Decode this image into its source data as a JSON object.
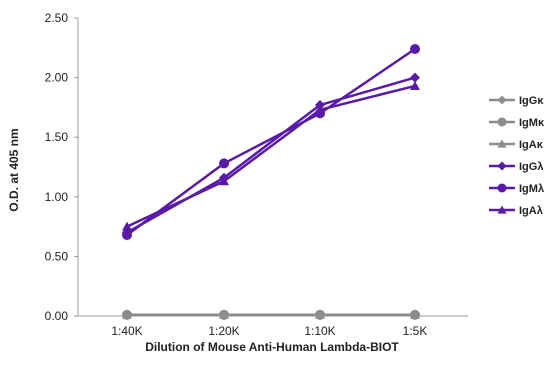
{
  "chart_data": {
    "type": "line",
    "title": "",
    "xlabel": "Dilution of Mouse Anti-Human Lambda-BIOT",
    "ylabel": "O.D. at 405 nm",
    "categories": [
      "1:40K",
      "1:20K",
      "1:10K",
      "1:5K"
    ],
    "ylim": [
      0,
      2.5
    ],
    "yticks": [
      "0.00",
      "0.50",
      "1.00",
      "1.50",
      "2.00",
      "2.50"
    ],
    "grid": false,
    "legend_position": "right",
    "series": [
      {
        "name": "IgGκ",
        "values": [
          0.01,
          0.01,
          0.01,
          0.01
        ],
        "color": "#8c8c8c",
        "marker": "diamond"
      },
      {
        "name": "IgMκ",
        "values": [
          0.01,
          0.01,
          0.01,
          0.01
        ],
        "color": "#8c8c8c",
        "marker": "circle"
      },
      {
        "name": "IgAκ",
        "values": [
          0.01,
          0.01,
          0.01,
          0.01
        ],
        "color": "#8c8c8c",
        "marker": "triangle"
      },
      {
        "name": "IgGλ",
        "values": [
          0.7,
          1.16,
          1.77,
          2.0
        ],
        "color": "#5a1aa8",
        "marker": "diamond"
      },
      {
        "name": "IgMλ",
        "values": [
          0.68,
          1.28,
          1.7,
          2.24
        ],
        "color": "#5a1aa8",
        "marker": "circle"
      },
      {
        "name": "IgAλ",
        "values": [
          0.75,
          1.13,
          1.73,
          1.93
        ],
        "color": "#5a1aa8",
        "marker": "triangle"
      }
    ]
  }
}
